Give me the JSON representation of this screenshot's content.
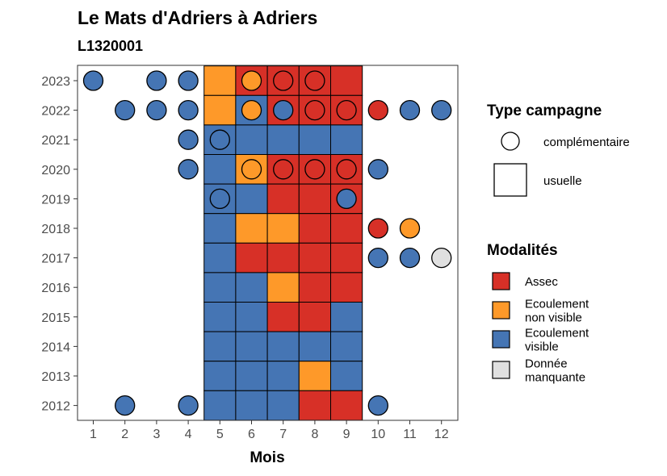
{
  "colors": {
    "Assec": "#d73027",
    "Ecoulement non visible": "#fe9929",
    "Ecoulement visible": "#4575b4",
    "Donnée manquante": "#e0e0e0"
  },
  "chart_data": {
    "type": "heatmap",
    "title": "Le Mats d'Adriers à Adriers",
    "subtitle": "L1320001",
    "xlabel": "Mois",
    "ylabel": "",
    "x_ticks": [
      1,
      2,
      3,
      4,
      5,
      6,
      7,
      8,
      9,
      10,
      11,
      12
    ],
    "y_ticks": [
      2012,
      2013,
      2014,
      2015,
      2016,
      2017,
      2018,
      2019,
      2020,
      2021,
      2022,
      2023
    ],
    "usual_months": [
      5,
      6,
      7,
      8,
      9
    ],
    "legend_shape": {
      "title": "Type campagne",
      "items": [
        {
          "shape": "circle",
          "label": "complémentaire"
        },
        {
          "shape": "square",
          "label": "usuelle"
        }
      ]
    },
    "legend_fill": {
      "title": "Modalités",
      "items": [
        {
          "key": "Assec",
          "lines": [
            "Assec"
          ]
        },
        {
          "key": "Ecoulement non visible",
          "lines": [
            "Ecoulement",
            "non visible"
          ]
        },
        {
          "key": "Ecoulement visible",
          "lines": [
            "Ecoulement",
            "visible"
          ]
        },
        {
          "key": "Donnée manquante",
          "lines": [
            "Donnée",
            "manquante"
          ]
        }
      ]
    },
    "usuelle": [
      {
        "year": 2023,
        "months": [
          "Ecoulement non visible",
          "Assec",
          "Assec",
          "Assec",
          "Assec"
        ]
      },
      {
        "year": 2022,
        "months": [
          "Ecoulement non visible",
          "Ecoulement visible",
          "Assec",
          "Assec",
          "Assec"
        ]
      },
      {
        "year": 2021,
        "months": [
          "Ecoulement visible",
          "Ecoulement visible",
          "Ecoulement visible",
          "Ecoulement visible",
          "Ecoulement visible"
        ]
      },
      {
        "year": 2020,
        "months": [
          "Ecoulement visible",
          "Ecoulement non visible",
          "Assec",
          "Assec",
          "Assec"
        ]
      },
      {
        "year": 2019,
        "months": [
          "Ecoulement visible",
          "Ecoulement visible",
          "Assec",
          "Assec",
          "Assec"
        ]
      },
      {
        "year": 2018,
        "months": [
          "Ecoulement visible",
          "Ecoulement non visible",
          "Ecoulement non visible",
          "Assec",
          "Assec"
        ]
      },
      {
        "year": 2017,
        "months": [
          "Ecoulement visible",
          "Assec",
          "Assec",
          "Assec",
          "Assec"
        ]
      },
      {
        "year": 2016,
        "months": [
          "Ecoulement visible",
          "Ecoulement visible",
          "Ecoulement non visible",
          "Assec",
          "Assec"
        ]
      },
      {
        "year": 2015,
        "months": [
          "Ecoulement visible",
          "Ecoulement visible",
          "Assec",
          "Assec",
          "Ecoulement visible"
        ]
      },
      {
        "year": 2014,
        "months": [
          "Ecoulement visible",
          "Ecoulement visible",
          "Ecoulement visible",
          "Ecoulement visible",
          "Ecoulement visible"
        ]
      },
      {
        "year": 2013,
        "months": [
          "Ecoulement visible",
          "Ecoulement visible",
          "Ecoulement visible",
          "Ecoulement non visible",
          "Ecoulement visible"
        ]
      },
      {
        "year": 2012,
        "months": [
          "Ecoulement visible",
          "Ecoulement visible",
          "Ecoulement visible",
          "Assec",
          "Assec"
        ]
      }
    ],
    "complementaire": [
      {
        "year": 2023,
        "month": 1,
        "value": "Ecoulement visible"
      },
      {
        "year": 2023,
        "month": 3,
        "value": "Ecoulement visible"
      },
      {
        "year": 2023,
        "month": 4,
        "value": "Ecoulement visible"
      },
      {
        "year": 2023,
        "month": 6,
        "value": "Ecoulement non visible"
      },
      {
        "year": 2023,
        "month": 7,
        "value": "Assec"
      },
      {
        "year": 2023,
        "month": 8,
        "value": "Assec"
      },
      {
        "year": 2022,
        "month": 2,
        "value": "Ecoulement visible"
      },
      {
        "year": 2022,
        "month": 3,
        "value": "Ecoulement visible"
      },
      {
        "year": 2022,
        "month": 4,
        "value": "Ecoulement visible"
      },
      {
        "year": 2022,
        "month": 6,
        "value": "Ecoulement non visible"
      },
      {
        "year": 2022,
        "month": 7,
        "value": "Ecoulement visible"
      },
      {
        "year": 2022,
        "month": 8,
        "value": "Assec"
      },
      {
        "year": 2022,
        "month": 9,
        "value": "Assec"
      },
      {
        "year": 2022,
        "month": 10,
        "value": "Assec"
      },
      {
        "year": 2022,
        "month": 11,
        "value": "Ecoulement visible"
      },
      {
        "year": 2022,
        "month": 12,
        "value": "Ecoulement visible"
      },
      {
        "year": 2021,
        "month": 4,
        "value": "Ecoulement visible"
      },
      {
        "year": 2021,
        "month": 5,
        "value": "Ecoulement visible"
      },
      {
        "year": 2020,
        "month": 4,
        "value": "Ecoulement visible"
      },
      {
        "year": 2020,
        "month": 6,
        "value": "Ecoulement non visible"
      },
      {
        "year": 2020,
        "month": 7,
        "value": "Assec"
      },
      {
        "year": 2020,
        "month": 8,
        "value": "Assec"
      },
      {
        "year": 2020,
        "month": 9,
        "value": "Assec"
      },
      {
        "year": 2020,
        "month": 10,
        "value": "Ecoulement visible"
      },
      {
        "year": 2019,
        "month": 5,
        "value": "Ecoulement visible"
      },
      {
        "year": 2019,
        "month": 9,
        "value": "Ecoulement visible"
      },
      {
        "year": 2018,
        "month": 10,
        "value": "Assec"
      },
      {
        "year": 2018,
        "month": 11,
        "value": "Ecoulement non visible"
      },
      {
        "year": 2017,
        "month": 10,
        "value": "Ecoulement visible"
      },
      {
        "year": 2017,
        "month": 11,
        "value": "Ecoulement visible"
      },
      {
        "year": 2017,
        "month": 12,
        "value": "Donnée manquante"
      },
      {
        "year": 2012,
        "month": 2,
        "value": "Ecoulement visible"
      },
      {
        "year": 2012,
        "month": 4,
        "value": "Ecoulement visible"
      },
      {
        "year": 2012,
        "month": 10,
        "value": "Ecoulement visible"
      }
    ]
  }
}
